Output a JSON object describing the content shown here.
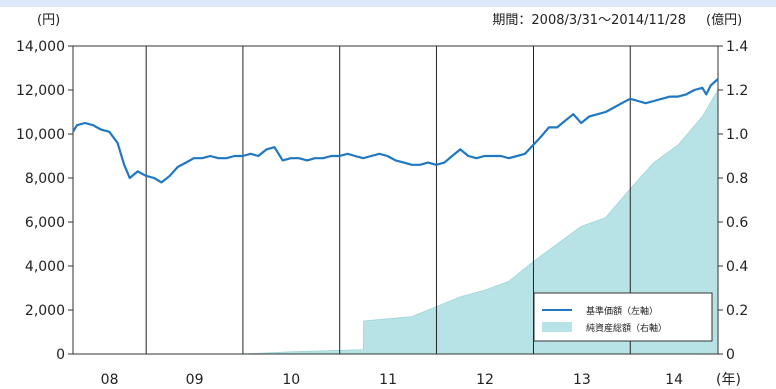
{
  "header": {
    "left_unit": "(円)",
    "right_unit": "(億円)",
    "period": "期間：2008/3/31～2014/11/28",
    "year_unit": "(年)"
  },
  "legend": {
    "nav_label": "基準価額（左軸）",
    "assets_label": "純資産総額（右軸）"
  },
  "colors": {
    "line": "#1f78c1",
    "area": "#b7e3e6",
    "area_edge": "#9fd6da",
    "grid": "#222222",
    "header_bar": "#dbe9f8"
  },
  "chart_data": {
    "type": "line",
    "x_range": [
      "2008-03-31",
      "2014-11-28"
    ],
    "x_ticks": [
      "08",
      "09",
      "10",
      "11",
      "12",
      "13",
      "14"
    ],
    "y_left": {
      "range": [
        0,
        14000
      ],
      "ticks": [
        "0",
        "2,000",
        "4,000",
        "6,000",
        "8,000",
        "10,000",
        "12,000",
        "14,000"
      ]
    },
    "y_right": {
      "range": [
        0,
        1.4
      ],
      "ticks": [
        "0",
        "0.2",
        "0.4",
        "0.6",
        "0.8",
        "1.0",
        "1.2",
        "1.4"
      ]
    },
    "grid": "vertical lines at year boundaries",
    "legend_position": "bottom-right",
    "series": [
      {
        "name": "基準価額（左軸）",
        "axis": "left",
        "kind": "line",
        "x": [
          "2008-03-31",
          "2008-04-15",
          "2008-05-15",
          "2008-06-15",
          "2008-07-15",
          "2008-08-15",
          "2008-09-15",
          "2008-10-10",
          "2008-10-31",
          "2008-11-30",
          "2008-12-31",
          "2009-01-31",
          "2009-02-28",
          "2009-03-31",
          "2009-04-30",
          "2009-05-31",
          "2009-06-30",
          "2009-07-31",
          "2009-08-31",
          "2009-09-30",
          "2009-10-31",
          "2009-11-30",
          "2009-12-31",
          "2010-01-31",
          "2010-02-28",
          "2010-03-31",
          "2010-04-30",
          "2010-05-31",
          "2010-06-30",
          "2010-07-31",
          "2010-08-31",
          "2010-09-30",
          "2010-10-31",
          "2010-11-30",
          "2010-12-31",
          "2011-01-31",
          "2011-02-28",
          "2011-03-31",
          "2011-04-30",
          "2011-05-31",
          "2011-06-30",
          "2011-07-31",
          "2011-08-31",
          "2011-09-30",
          "2011-10-31",
          "2011-11-30",
          "2011-12-31",
          "2012-01-31",
          "2012-02-29",
          "2012-03-31",
          "2012-04-30",
          "2012-05-31",
          "2012-06-30",
          "2012-07-31",
          "2012-08-31",
          "2012-09-30",
          "2012-10-31",
          "2012-11-30",
          "2012-12-31",
          "2013-01-31",
          "2013-02-28",
          "2013-03-31",
          "2013-04-30",
          "2013-05-31",
          "2013-06-30",
          "2013-07-31",
          "2013-08-31",
          "2013-09-30",
          "2013-10-31",
          "2013-11-30",
          "2013-12-31",
          "2014-01-31",
          "2014-02-28",
          "2014-03-31",
          "2014-04-30",
          "2014-05-31",
          "2014-06-30",
          "2014-07-31",
          "2014-08-31",
          "2014-09-30",
          "2014-10-15",
          "2014-10-31",
          "2014-11-28"
        ],
        "values": [
          10100,
          10400,
          10500,
          10400,
          10200,
          10100,
          9600,
          8600,
          8000,
          8300,
          8100,
          8000,
          7800,
          8100,
          8500,
          8700,
          8900,
          8900,
          9000,
          8900,
          8900,
          9000,
          9000,
          9100,
          9000,
          9300,
          9400,
          8800,
          8900,
          8900,
          8800,
          8900,
          8900,
          9000,
          9000,
          9100,
          9000,
          8900,
          9000,
          9100,
          9000,
          8800,
          8700,
          8600,
          8600,
          8700,
          8600,
          8700,
          9000,
          9300,
          9000,
          8900,
          9000,
          9000,
          9000,
          8900,
          9000,
          9100,
          9500,
          9900,
          10300,
          10300,
          10600,
          10900,
          10500,
          10800,
          10900,
          11000,
          11200,
          11400,
          11600,
          11500,
          11400,
          11500,
          11600,
          11700,
          11700,
          11800,
          12000,
          12100,
          11800,
          12200,
          12500
        ]
      },
      {
        "name": "純資産総額（右軸）",
        "axis": "right",
        "kind": "area",
        "x": [
          "2008-03-31",
          "2009-12-31",
          "2010-06-30",
          "2011-03-31",
          "2011-04-01",
          "2011-09-30",
          "2012-04-01",
          "2012-06-30",
          "2012-09-30",
          "2012-12-31",
          "2013-04-01",
          "2013-06-30",
          "2013-09-30",
          "2013-12-31",
          "2014-03-31",
          "2014-06-30",
          "2014-09-30",
          "2014-11-28"
        ],
        "values": [
          0.0,
          0.0,
          0.01,
          0.02,
          0.15,
          0.17,
          0.26,
          0.29,
          0.33,
          0.42,
          0.5,
          0.58,
          0.62,
          0.75,
          0.87,
          0.95,
          1.08,
          1.2
        ]
      }
    ]
  }
}
